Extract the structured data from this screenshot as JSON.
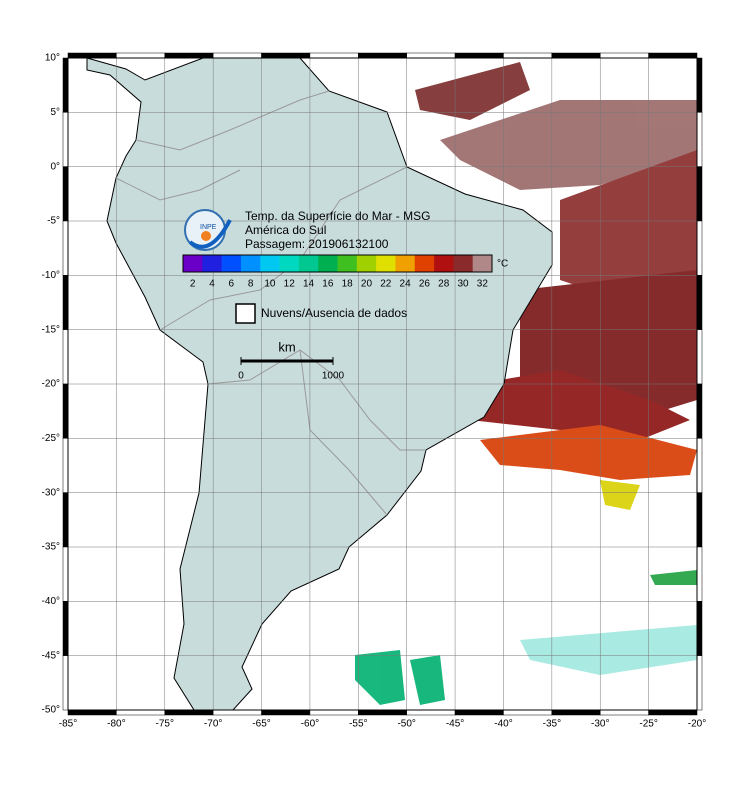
{
  "map": {
    "title": [
      "Temp. da Superfície do Mar - MSG",
      "América do Sul",
      "Passagem: 201906132100"
    ],
    "logo_text": "INPE",
    "colorbar": {
      "unit": "°C",
      "labels": [
        "2",
        "4",
        "6",
        "8",
        "10",
        "12",
        "14",
        "16",
        "18",
        "20",
        "22",
        "24",
        "26",
        "28",
        "30",
        "32"
      ],
      "colors": [
        "#6a00c8",
        "#2020e0",
        "#0050ff",
        "#0090ff",
        "#00c8f0",
        "#00d8c0",
        "#00c890",
        "#00b050",
        "#40c020",
        "#a0d000",
        "#e0e000",
        "#f0a000",
        "#e04000",
        "#b01010",
        "#8a2a2a",
        "#b08888"
      ]
    },
    "legend": "Nuvens/Ausencia de dados",
    "scale": {
      "unit": "km",
      "start": "0",
      "end": "1000"
    },
    "x_ticks": [
      {
        "value": -85,
        "label": "-85°"
      },
      {
        "value": -80,
        "label": "-80°"
      },
      {
        "value": -75,
        "label": "-75°"
      },
      {
        "value": -70,
        "label": "-70°"
      },
      {
        "value": -65,
        "label": "-65°"
      },
      {
        "value": -60,
        "label": "-60°"
      },
      {
        "value": -55,
        "label": "-55°"
      },
      {
        "value": -50,
        "label": "-50°"
      },
      {
        "value": -45,
        "label": "-45°"
      },
      {
        "value": -40,
        "label": "-40°"
      },
      {
        "value": -35,
        "label": "-35°"
      },
      {
        "value": -30,
        "label": "-30°"
      },
      {
        "value": -25,
        "label": "-25°"
      },
      {
        "value": -20,
        "label": "-20°"
      }
    ],
    "y_ticks": [
      {
        "value": 10,
        "label": "10°"
      },
      {
        "value": 5,
        "label": "5°"
      },
      {
        "value": 0,
        "label": "0°"
      },
      {
        "value": -5,
        "label": "-5°"
      },
      {
        "value": -10,
        "label": "-10°"
      },
      {
        "value": -15,
        "label": "-15°"
      },
      {
        "value": -20,
        "label": "-20°"
      },
      {
        "value": -25,
        "label": "-25°"
      },
      {
        "value": -30,
        "label": "-30°"
      },
      {
        "value": -35,
        "label": "-35°"
      },
      {
        "value": -40,
        "label": "-40°"
      },
      {
        "value": -45,
        "label": "-45°"
      },
      {
        "value": -50,
        "label": "-50°"
      }
    ]
  }
}
